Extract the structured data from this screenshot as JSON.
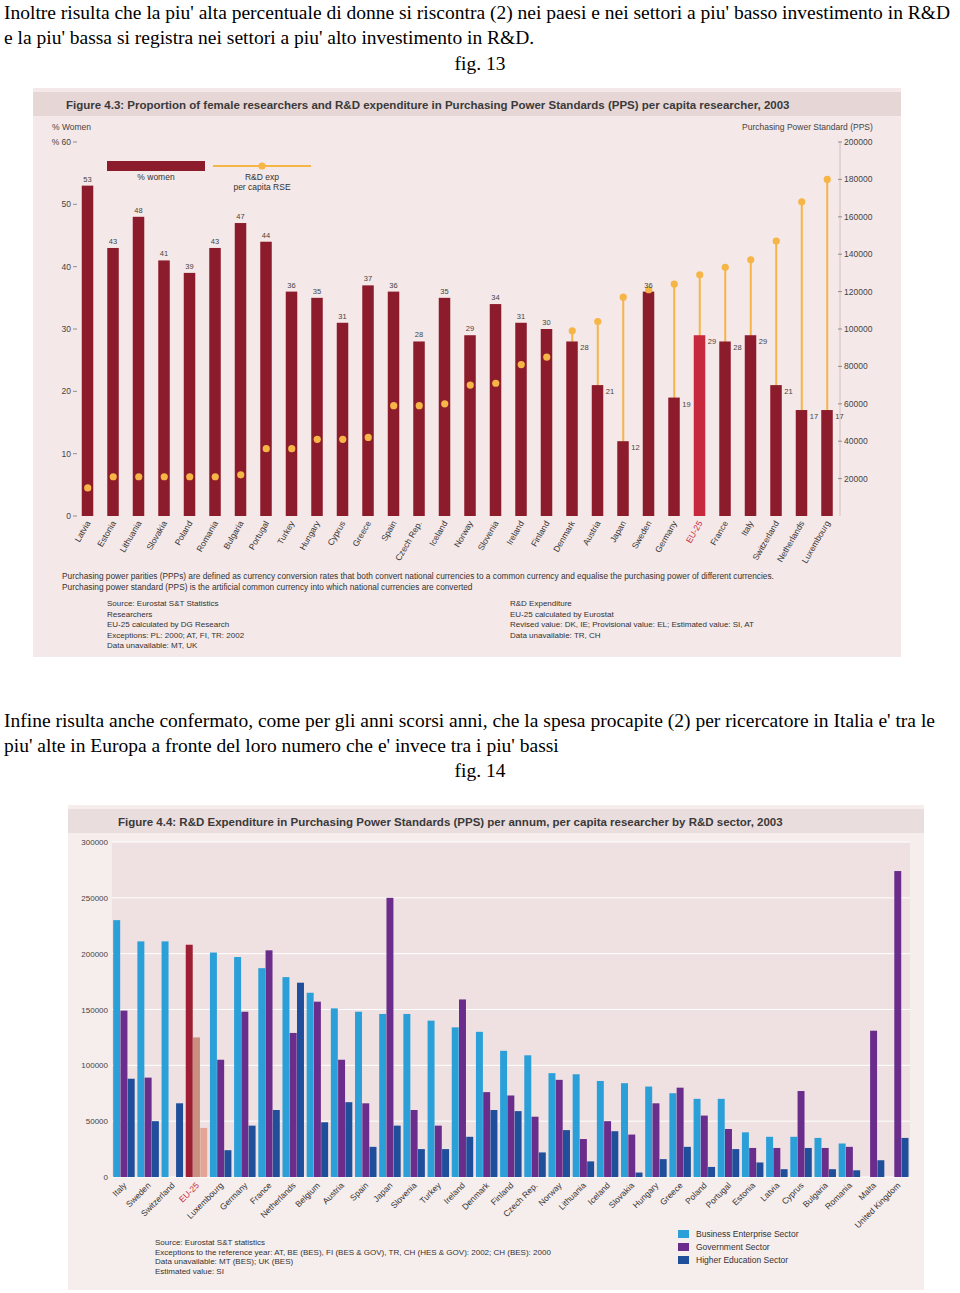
{
  "intro": "Inoltre risulta  che  la piu' alta percentuale di donne si riscontra (2) nei paesi e nei settori  a  piu' basso investimento in  R&D e la piu' bassa si registra nei settori a piu' alto investimento in R&D.",
  "fig13_label": "fig. 13",
  "middle": "Infine risulta anche confermato, come per gli  anni scorsi anni, che la spesa procapite (2) per ricercatore in Italia e' tra le piu' alte in Europa a fronte del loro numero  che e' invece tra i  piu' bassi",
  "fig14_label": "fig. 14",
  "chart_data": [
    {
      "type": "bar",
      "title": "Figure 4.3: Proportion of female researchers and R&D expenditure in Purchasing Power Standards (PPS) per capita researcher, 2003",
      "y_label": "% Women",
      "y2_label": "Purchasing Power Standard (PPS)",
      "categories": [
        "Latvia",
        "Estonia",
        "Lithuania",
        "Slovakia",
        "Poland",
        "Romania",
        "Bulgaria",
        "Portugal",
        "Turkey",
        "Hungary",
        "Cyprus",
        "Greece",
        "Spain",
        "Czech Rep.",
        "Iceland",
        "Norway",
        "Slovenia",
        "Ireland",
        "Finland",
        "Denmark",
        "Austria",
        "Japan",
        "Sweden",
        "Germany",
        "EU-25",
        "France",
        "Italy",
        "Switzerland",
        "Netherlands",
        "Luxembourg"
      ],
      "series": [
        {
          "name": "% women",
          "type": "bar",
          "color": "#8c1c2c",
          "colors": [
            "#8c1c2c",
            "#8c1c2c",
            "#8c1c2c",
            "#8c1c2c",
            "#8c1c2c",
            "#8c1c2c",
            "#8c1c2c",
            "#8c1c2c",
            "#8c1c2c",
            "#8c1c2c",
            "#8c1c2c",
            "#8c1c2c",
            "#8c1c2c",
            "#8c1c2c",
            "#8c1c2c",
            "#8c1c2c",
            "#8c1c2c",
            "#8c1c2c",
            "#8c1c2c",
            "#8c1c2c",
            "#8c1c2c",
            "#8c1c2c",
            "#8c1c2c",
            "#8c1c2c",
            "#c8283c",
            "#8c1c2c",
            "#8c1c2c",
            "#8c1c2c",
            "#8c1c2c",
            "#8c1c2c"
          ],
          "values": [
            53,
            43,
            48,
            41,
            39,
            43,
            47,
            44,
            36,
            35,
            31,
            37,
            36,
            28,
            35,
            29,
            34,
            31,
            30,
            28,
            21,
            12,
            36,
            19,
            29,
            28,
            29,
            21,
            17,
            17
          ]
        },
        {
          "name": "R&D exp per capita RSE",
          "type": "lollipop",
          "axis": "y2",
          "color": "#f5b547",
          "marker": "circle",
          "values": [
            15000,
            21000,
            21000,
            21000,
            21000,
            21000,
            22000,
            36000,
            36000,
            41000,
            41000,
            42000,
            59000,
            59000,
            60000,
            70000,
            71000,
            81000,
            85000,
            99000,
            104000,
            117000,
            121000,
            124000,
            129000,
            133000,
            137000,
            147000,
            168000,
            180000
          ]
        }
      ],
      "ylim": [
        0,
        60
      ],
      "yticks": [
        0,
        10,
        20,
        30,
        40,
        50,
        {
          "value": 60,
          "label": "% 60"
        }
      ],
      "y2lim": [
        0,
        200000
      ],
      "y2ticks": [
        20000,
        40000,
        60000,
        80000,
        100000,
        120000,
        140000,
        160000,
        180000,
        200000
      ],
      "grid": false,
      "data_labels": true,
      "legend": "top-left",
      "footnotes": [
        "Purchasing power parities (PPPs) are defined as currency conversion rates that both convert national currencies to a common currency and equalise the purchasing power of different currencies.",
        "Purchasing power standard (PPS) is the artificial common currency into which national currencies are converted"
      ],
      "sources": [
        [
          "Source: Eurostat S&T Statistics",
          "Researchers",
          "EU-25 calculated by DG Research",
          "Exceptions: PL: 2000; AT, FI, TR: 2002",
          "Data unavailable: MT, UK"
        ],
        [
          "R&D Expenditure",
          "EU-25 calculated by Eurostat",
          "Revised value: DK, IE; Provisional value: EL; Estimated value: SI, AT",
          "Data unavailable: TR, CH"
        ]
      ]
    },
    {
      "type": "bar",
      "title": "Figure 4.4: R&D Expenditure in Purchasing Power Standards (PPS) per annum, per capita researcher by R&D sector, 2003",
      "categories": [
        "Italy",
        "Sweden",
        "Switzerland",
        "EU-25",
        "Luxembourg",
        "Germany",
        "France",
        "Netherlands",
        "Belgium",
        "Austria",
        "Spain",
        "Japan",
        "Slovenia",
        "Turkey",
        "Ireland",
        "Denmark",
        "Finland",
        "Czech Rep.",
        "Norway",
        "Lithuania",
        "Iceland",
        "Slovakia",
        "Hungary",
        "Greece",
        "Poland",
        "Portugal",
        "Estonia",
        "Latvia",
        "Cyprus",
        "Bulgaria",
        "Romania",
        "Malta",
        "United Kingdom"
      ],
      "series": [
        {
          "name": "Business Enterprise Sector",
          "color": "#2a9fd8",
          "colors": [
            "#2a9fd8",
            "#2a9fd8",
            "#2a9fd8",
            "#9e1f33",
            "#2a9fd8",
            "#2a9fd8",
            "#2a9fd8",
            "#2a9fd8",
            "#2a9fd8",
            "#2a9fd8",
            "#2a9fd8",
            "#2a9fd8",
            "#2a9fd8",
            "#2a9fd8",
            "#2a9fd8",
            "#2a9fd8",
            "#2a9fd8",
            "#2a9fd8",
            "#2a9fd8",
            "#2a9fd8",
            "#2a9fd8",
            "#2a9fd8",
            "#2a9fd8",
            "#2a9fd8",
            "#2a9fd8",
            "#2a9fd8",
            "#2a9fd8",
            "#2a9fd8",
            "#2a9fd8",
            "#2a9fd8",
            "#2a9fd8",
            "#2a9fd8",
            "#2a9fd8"
          ],
          "values": [
            230000,
            211000,
            211000,
            208000,
            201000,
            197000,
            187000,
            179000,
            165000,
            151000,
            148000,
            146000,
            146000,
            140000,
            134000,
            130000,
            113000,
            109000,
            93000,
            92000,
            86000,
            84000,
            81000,
            75000,
            70000,
            70000,
            40000,
            36000,
            36000,
            35000,
            30000,
            null,
            null
          ]
        },
        {
          "name": "Government Sector",
          "color": "#6b2d8c",
          "colors": [
            "#6b2d8c",
            "#6b2d8c",
            "#6b2d8c",
            "#c9907f",
            "#6b2d8c",
            "#6b2d8c",
            "#6b2d8c",
            "#6b2d8c",
            "#6b2d8c",
            "#6b2d8c",
            "#6b2d8c",
            "#6b2d8c",
            "#6b2d8c",
            "#6b2d8c",
            "#6b2d8c",
            "#6b2d8c",
            "#6b2d8c",
            "#6b2d8c",
            "#6b2d8c",
            "#6b2d8c",
            "#6b2d8c",
            "#6b2d8c",
            "#6b2d8c",
            "#6b2d8c",
            "#6b2d8c",
            "#6b2d8c",
            "#6b2d8c",
            "#6b2d8c",
            "#6b2d8c",
            "#6b2d8c",
            "#6b2d8c",
            "#6b2d8c",
            "#6b2d8c"
          ],
          "values": [
            149000,
            89000,
            null,
            125000,
            105000,
            148000,
            203000,
            129000,
            157000,
            105000,
            66000,
            250000,
            60000,
            46000,
            159000,
            76000,
            73000,
            54000,
            87000,
            34000,
            50000,
            38000,
            66000,
            80000,
            55000,
            43000,
            26000,
            26000,
            77000,
            26000,
            27000,
            131000,
            274000
          ]
        },
        {
          "name": "Higher Education Sector",
          "color": "#1f4e9b",
          "colors": [
            "#1f4e9b",
            "#1f4e9b",
            "#1f4e9b",
            "#e2a596",
            "#1f4e9b",
            "#1f4e9b",
            "#1f4e9b",
            "#1f4e9b",
            "#1f4e9b",
            "#1f4e9b",
            "#1f4e9b",
            "#1f4e9b",
            "#1f4e9b",
            "#1f4e9b",
            "#1f4e9b",
            "#1f4e9b",
            "#1f4e9b",
            "#1f4e9b",
            "#1f4e9b",
            "#1f4e9b",
            "#1f4e9b",
            "#1f4e9b",
            "#1f4e9b",
            "#1f4e9b",
            "#1f4e9b",
            "#1f4e9b",
            "#1f4e9b",
            "#1f4e9b",
            "#1f4e9b",
            "#1f4e9b",
            "#1f4e9b",
            "#1f4e9b",
            "#1f4e9b"
          ],
          "values": [
            88000,
            50000,
            66000,
            44000,
            24000,
            46000,
            60000,
            174000,
            49000,
            67000,
            27000,
            46000,
            25000,
            25000,
            36000,
            60000,
            59000,
            22000,
            42000,
            14000,
            41000,
            4000,
            16000,
            27000,
            9000,
            25000,
            13000,
            7000,
            26000,
            7000,
            6000,
            15000,
            35000
          ]
        }
      ],
      "ylim": [
        0,
        300000
      ],
      "yticks": [
        0,
        50000,
        100000,
        150000,
        200000,
        250000,
        300000
      ],
      "grid": true,
      "legend": "bottom-right",
      "sources": [
        [
          "Source: Eurostat S&T statistics",
          "Exceptions to the reference year: AT, BE (BES), FI (BES & GOV), TR, CH (HES & GOV): 2002; CH (BES): 2000",
          "Data unavailable: MT (BES); UK (BES)",
          "Estimated value: SI"
        ]
      ]
    }
  ]
}
